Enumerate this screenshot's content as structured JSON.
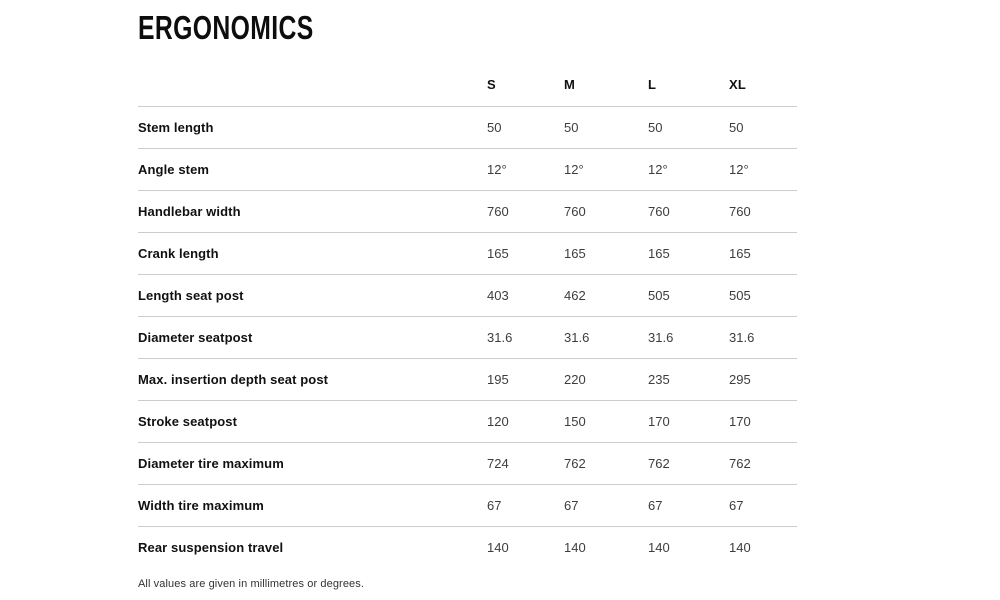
{
  "page": {
    "title": "ERGONOMICS",
    "footnote": "All values are given in millimetres or degrees."
  },
  "colors": {
    "background": "#ffffff",
    "title_text": "#0d0d0d",
    "label_text": "#111111",
    "value_text": "#3d3d3d",
    "divider_line": "#cccccc"
  },
  "table": {
    "columns": [
      "S",
      "M",
      "L",
      "XL"
    ],
    "rows": [
      {
        "label": "Stem length",
        "values": [
          "50",
          "50",
          "50",
          "50"
        ]
      },
      {
        "label": "Angle stem",
        "values": [
          "12°",
          "12°",
          "12°",
          "12°"
        ]
      },
      {
        "label": "Handlebar width",
        "values": [
          "760",
          "760",
          "760",
          "760"
        ]
      },
      {
        "label": "Crank length",
        "values": [
          "165",
          "165",
          "165",
          "165"
        ]
      },
      {
        "label": "Length seat post",
        "values": [
          "403",
          "462",
          "505",
          "505"
        ]
      },
      {
        "label": "Diameter seatpost",
        "values": [
          "31.6",
          "31.6",
          "31.6",
          "31.6"
        ]
      },
      {
        "label": "Max. insertion depth seat post",
        "values": [
          "195",
          "220",
          "235",
          "295"
        ]
      },
      {
        "label": "Stroke seatpost",
        "values": [
          "120",
          "150",
          "170",
          "170"
        ]
      },
      {
        "label": "Diameter tire maximum",
        "values": [
          "724",
          "762",
          "762",
          "762"
        ]
      },
      {
        "label": "Width tire maximum",
        "values": [
          "67",
          "67",
          "67",
          "67"
        ]
      },
      {
        "label": "Rear suspension travel",
        "values": [
          "140",
          "140",
          "140",
          "140"
        ]
      }
    ]
  }
}
